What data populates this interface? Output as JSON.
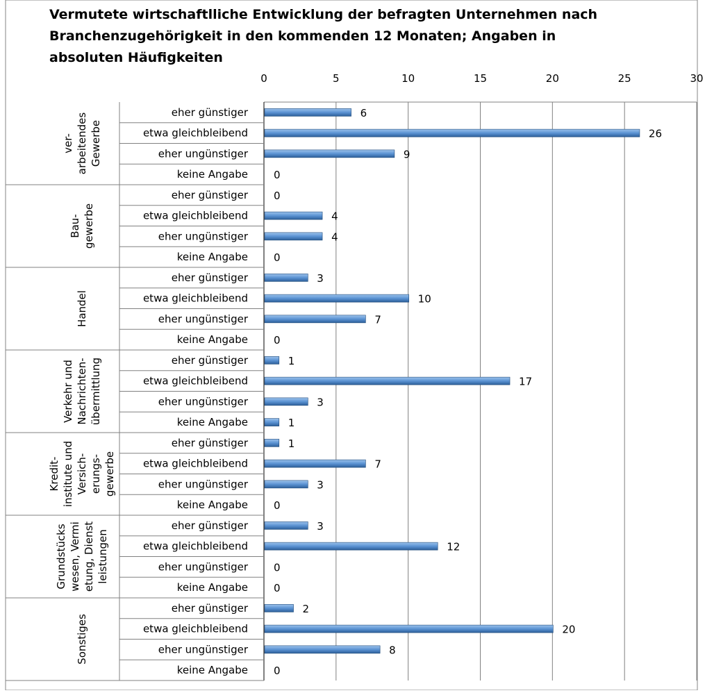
{
  "chart_data": {
    "type": "bar",
    "title_lines": [
      "Vermutete wirtschaftlliche Entwicklung der befragten Unternehmen nach",
      "Branchenzugehörigkeit in den kommenden 12 Monaten; Angaben in",
      "absoluten Häufigkeiten"
    ],
    "xlim": [
      0,
      30
    ],
    "x_ticks": [
      0,
      5,
      10,
      15,
      20,
      25,
      30
    ],
    "grid": true,
    "groups": [
      {
        "label_lines": [
          "ver-",
          "arbeitendes",
          "Gewerbe"
        ],
        "categories": [
          "eher günstiger",
          "etwa gleichbleibend",
          "eher ungünstiger",
          "keine Angabe"
        ],
        "values": [
          6,
          26,
          9,
          0
        ]
      },
      {
        "label_lines": [
          "Bau-",
          "gewerbe"
        ],
        "categories": [
          "eher günstiger",
          "etwa gleichbleibend",
          "eher ungünstiger",
          "keine Angabe"
        ],
        "values": [
          0,
          4,
          4,
          0
        ]
      },
      {
        "label_lines": [
          "Handel"
        ],
        "categories": [
          "eher günstiger",
          "etwa gleichbleibend",
          "eher ungünstiger",
          "keine Angabe"
        ],
        "values": [
          3,
          10,
          7,
          0
        ]
      },
      {
        "label_lines": [
          "Verkehr und",
          "Nachrichten-",
          "übermittlung"
        ],
        "categories": [
          "eher günstiger",
          "etwa gleichbleibend",
          "eher ungünstiger",
          "keine Angabe"
        ],
        "values": [
          1,
          17,
          3,
          1
        ]
      },
      {
        "label_lines": [
          "Kredit-",
          "institute und",
          "Versich-",
          "erungs-",
          "gewerbe"
        ],
        "categories": [
          "eher günstiger",
          "etwa gleichbleibend",
          "eher ungünstiger",
          "keine Angabe"
        ],
        "values": [
          1,
          7,
          3,
          0
        ]
      },
      {
        "label_lines": [
          "Grundstücks",
          "wesen, Vermi",
          "etung, Dienst",
          "leistungen"
        ],
        "categories": [
          "eher günstiger",
          "etwa gleichbleibend",
          "eher ungünstiger",
          "keine Angabe"
        ],
        "values": [
          3,
          12,
          0,
          0
        ]
      },
      {
        "label_lines": [
          "Sonstiges"
        ],
        "categories": [
          "eher günstiger",
          "etwa gleichbleibend",
          "eher ungünstiger",
          "keine Angabe"
        ],
        "values": [
          2,
          20,
          8,
          0
        ]
      }
    ],
    "colors": {
      "bar_top": "#9dc3ec",
      "bar_mid": "#5b93d3",
      "bar_bottom": "#2d5f99",
      "grid": "#808080",
      "frame": "#868686"
    }
  }
}
